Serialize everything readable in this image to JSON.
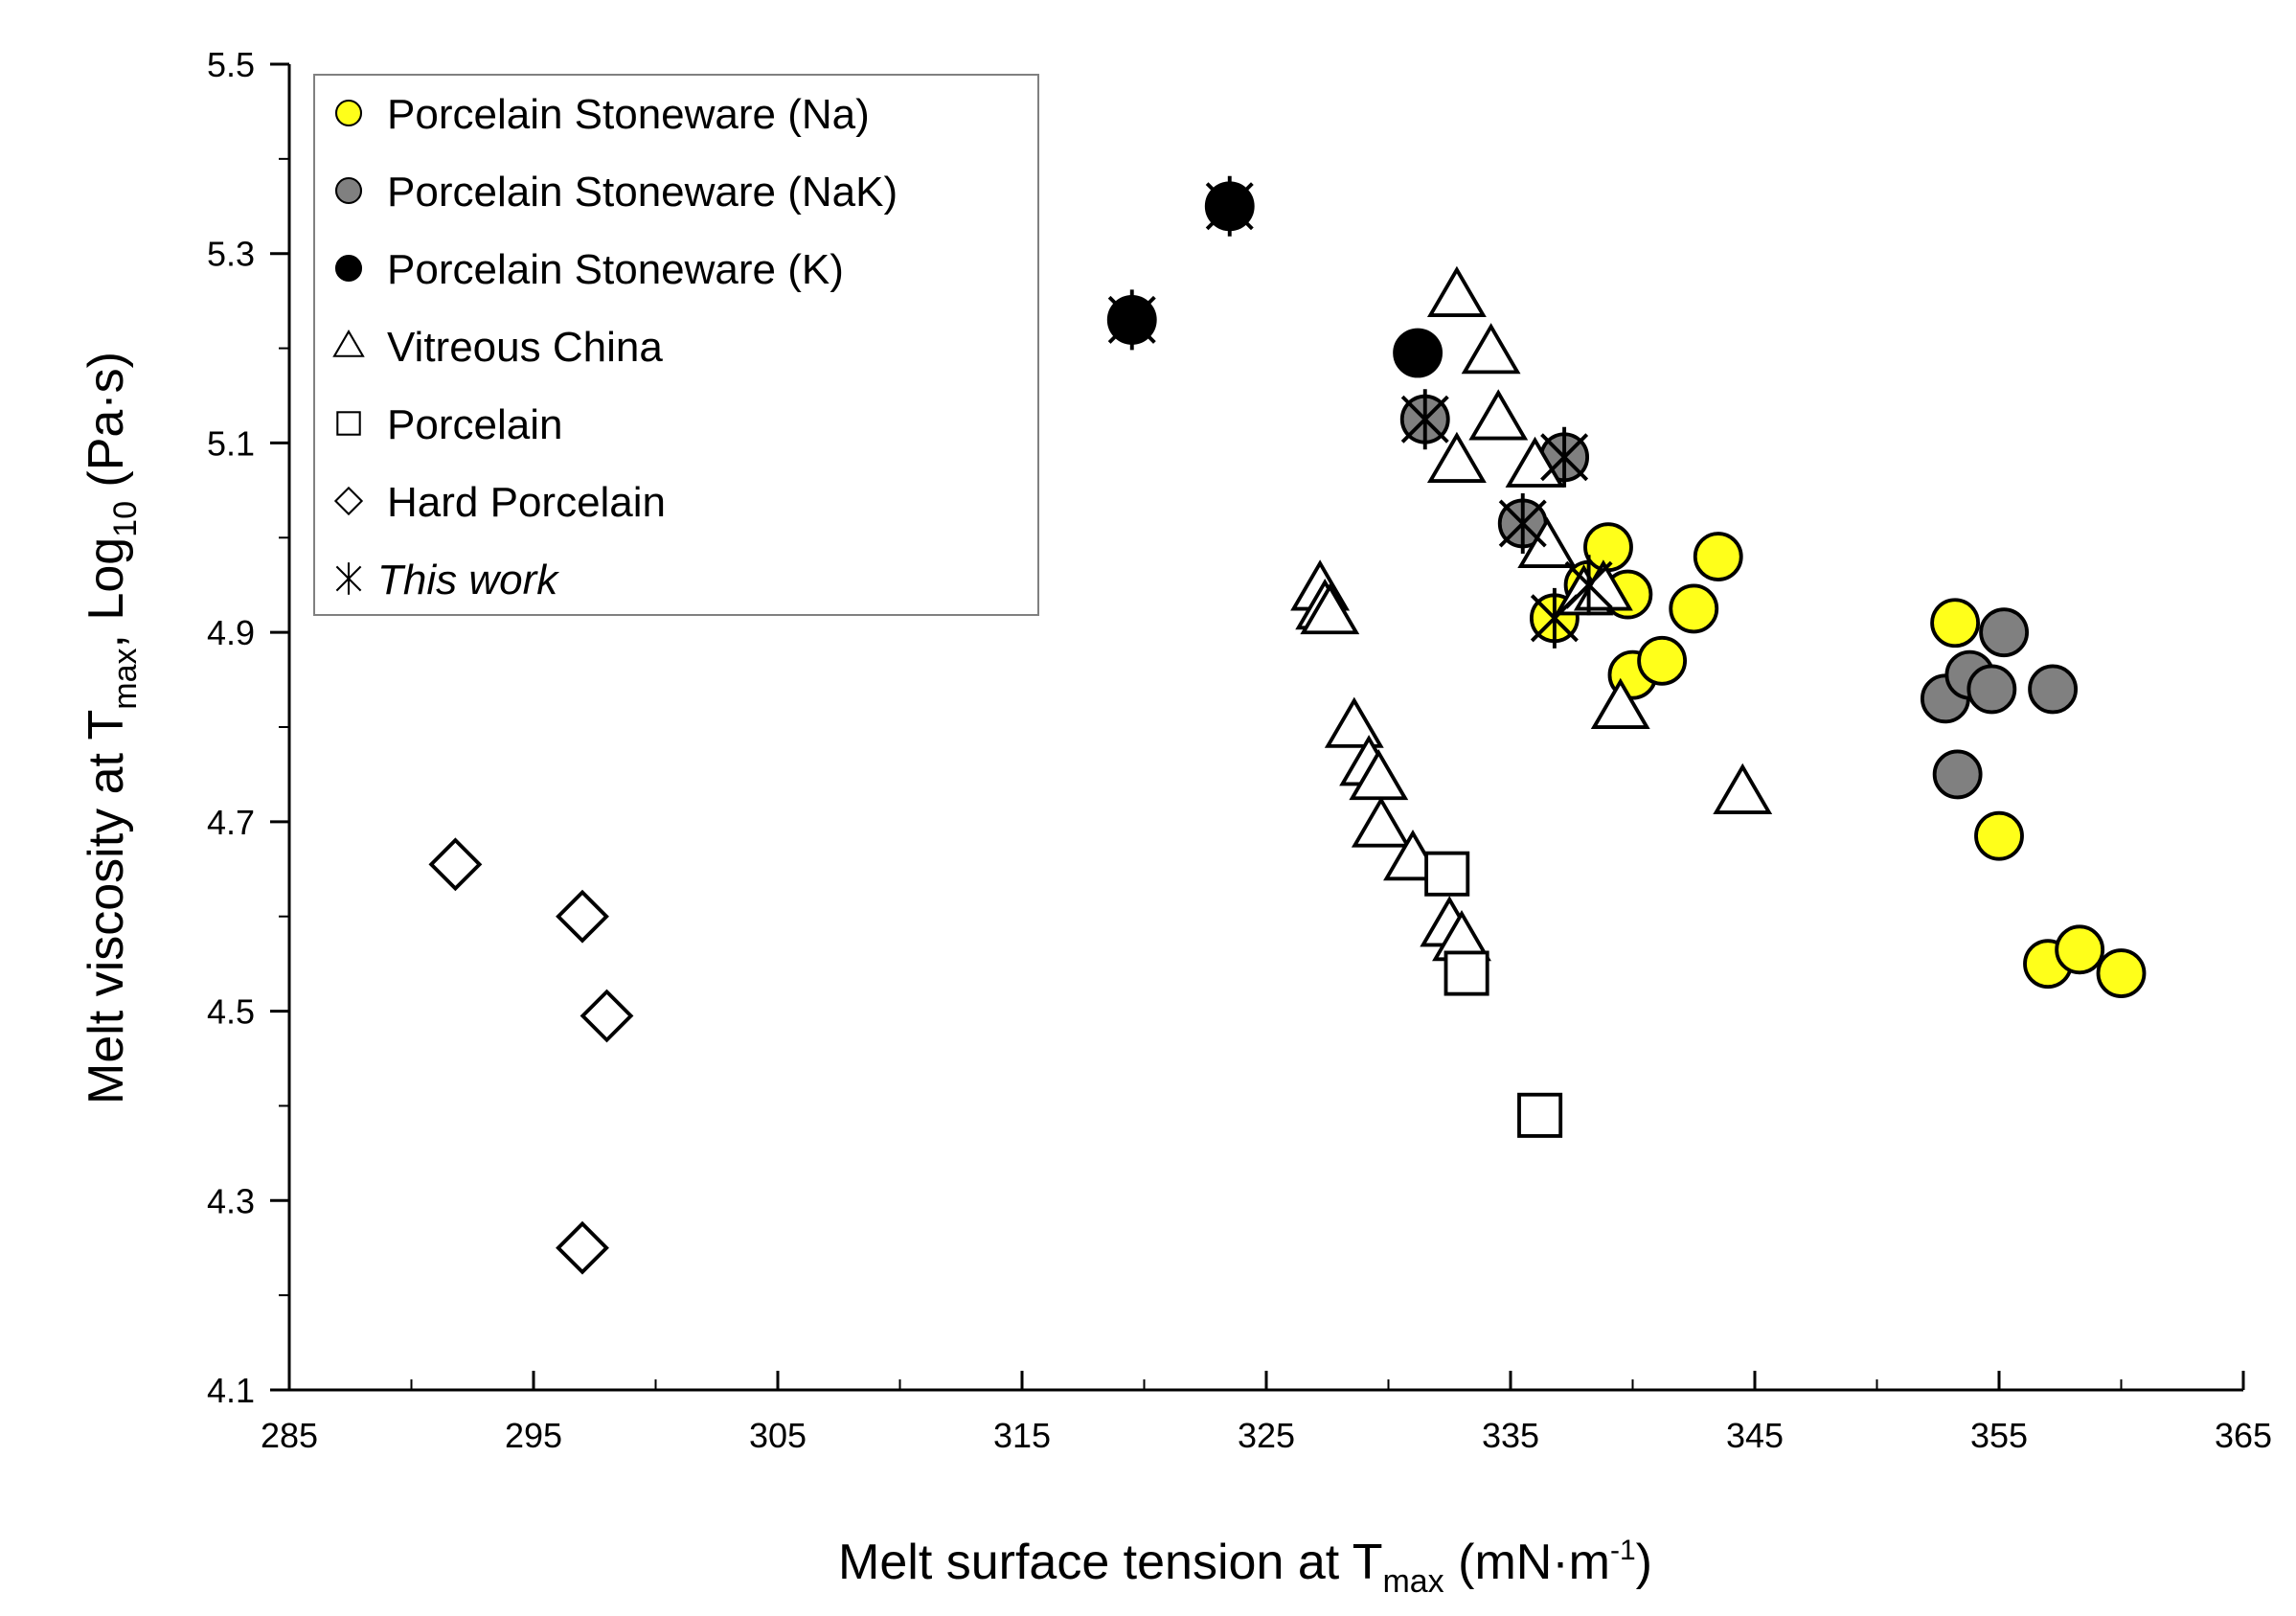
{
  "chart_data": {
    "type": "scatter",
    "xlabel": "Melt surface tension at T",
    "xlabel_sub": "max",
    "xlabel_unit": " (mN·m",
    "xlabel_unit_sup": "-1",
    "xlabel_unit_end": ")",
    "ylabel": "Melt viscosity at T",
    "ylabel_sub": "max",
    "ylabel_mid": ", Log",
    "ylabel_sub2": "10",
    "ylabel_unit": " (Pa·s)",
    "xlim": [
      285,
      365
    ],
    "ylim": [
      4.1,
      5.5
    ],
    "x_ticks": [
      "285",
      "295",
      "305",
      "315",
      "325",
      "335",
      "345",
      "355",
      "365"
    ],
    "y_ticks": [
      "4.1",
      "4.3",
      "4.5",
      "4.7",
      "4.9",
      "5.1",
      "5.3",
      "5.5"
    ],
    "legend_position": "top-left",
    "series": [
      {
        "name": "Porcelain Stoneware (Na)",
        "marker": "circle",
        "fill": "#ffff1a",
        "points": [
          [
            336.8,
            4.915
          ],
          [
            338.2,
            4.95
          ],
          [
            339.0,
            4.99
          ],
          [
            339.8,
            4.94
          ],
          [
            340.0,
            4.855
          ],
          [
            341.2,
            4.87
          ],
          [
            342.5,
            4.925
          ],
          [
            343.5,
            4.98
          ],
          [
            353.2,
            4.91
          ],
          [
            355.0,
            4.685
          ],
          [
            357.0,
            4.55
          ],
          [
            358.3,
            4.565
          ],
          [
            360.0,
            4.54
          ]
        ]
      },
      {
        "name": "Porcelain Stoneware (NaK)",
        "marker": "circle",
        "fill": "#808080",
        "points": [
          [
            331.5,
            5.125
          ],
          [
            337.2,
            5.085
          ],
          [
            335.5,
            5.015
          ],
          [
            352.8,
            4.83
          ],
          [
            353.8,
            4.855
          ],
          [
            354.7,
            4.84
          ],
          [
            355.2,
            4.9
          ],
          [
            357.2,
            4.84
          ],
          [
            353.3,
            4.75
          ]
        ]
      },
      {
        "name": "Porcelain Stoneware (K)",
        "marker": "circle",
        "fill": "#000000",
        "points": [
          [
            319.5,
            5.23
          ],
          [
            323.5,
            5.35
          ],
          [
            331.2,
            5.195
          ]
        ]
      },
      {
        "name": "Vitreous China",
        "marker": "triangle",
        "fill": "#ffffff",
        "points": [
          [
            332.8,
            5.255
          ],
          [
            334.2,
            5.195
          ],
          [
            334.5,
            5.125
          ],
          [
            332.8,
            5.08
          ],
          [
            336.0,
            5.075
          ],
          [
            336.5,
            4.99
          ],
          [
            338.0,
            4.94
          ],
          [
            338.8,
            4.945
          ],
          [
            339.5,
            4.82
          ],
          [
            344.5,
            4.73
          ],
          [
            327.2,
            4.945
          ],
          [
            327.4,
            4.925
          ],
          [
            327.6,
            4.92
          ],
          [
            328.6,
            4.8
          ],
          [
            329.2,
            4.76
          ],
          [
            329.6,
            4.745
          ],
          [
            329.7,
            4.695
          ],
          [
            331.0,
            4.66
          ],
          [
            332.5,
            4.59
          ],
          [
            333.0,
            4.575
          ]
        ]
      },
      {
        "name": "Porcelain",
        "marker": "square",
        "fill": "#ffffff",
        "points": [
          [
            332.4,
            4.645
          ],
          [
            333.2,
            4.54
          ],
          [
            336.2,
            4.39
          ]
        ]
      },
      {
        "name": "Hard Porcelain",
        "marker": "diamond",
        "fill": "#ffffff",
        "points": [
          [
            291.8,
            4.655
          ],
          [
            297.0,
            4.6
          ],
          [
            298.0,
            4.495
          ],
          [
            297.0,
            4.25
          ]
        ]
      },
      {
        "name": "This work",
        "marker": "asterisk",
        "fill": "none",
        "points": [
          [
            319.5,
            5.23
          ],
          [
            323.5,
            5.35
          ],
          [
            331.5,
            5.125
          ],
          [
            337.2,
            5.085
          ],
          [
            335.5,
            5.015
          ],
          [
            336.8,
            4.915
          ],
          [
            338.2,
            4.95
          ]
        ]
      }
    ]
  }
}
